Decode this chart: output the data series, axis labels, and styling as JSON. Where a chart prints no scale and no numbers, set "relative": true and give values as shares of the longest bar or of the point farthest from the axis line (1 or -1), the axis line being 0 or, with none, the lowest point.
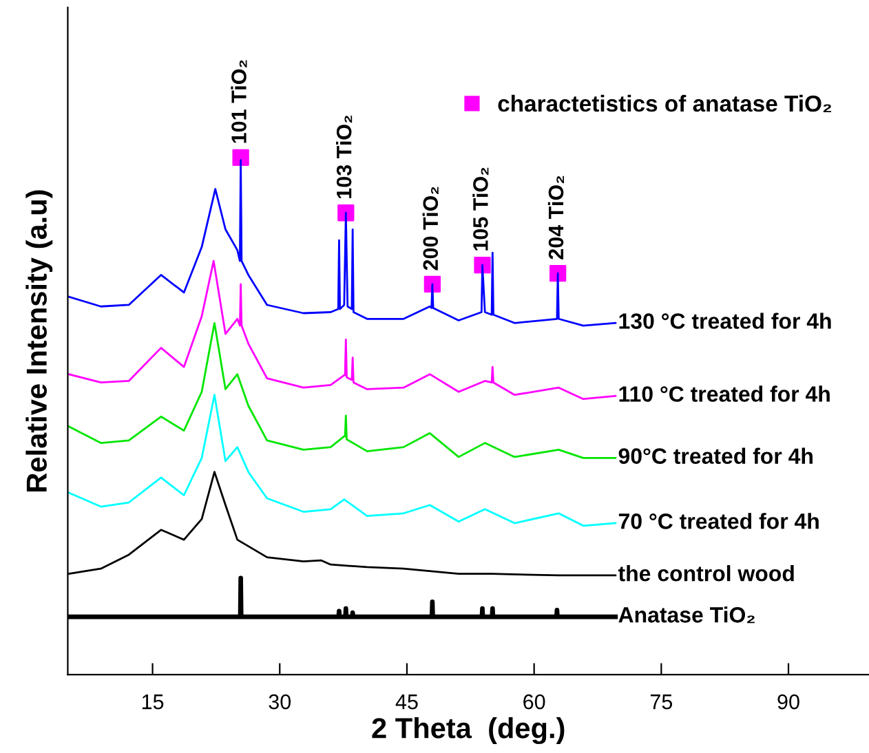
{
  "chart_data": {
    "type": "line",
    "relative": true,
    "xlabel": "2 Theta  (deg.)",
    "ylabel": "Relative Intensity (a.u)",
    "xlim": [
      5,
      99.5
    ],
    "xticks": [
      15,
      30,
      45,
      60,
      75,
      90
    ],
    "grid": false,
    "legend": "top right",
    "tick_labels": "x",
    "series": [
      {
        "name": "130 °C treated for 4h",
        "color": "#0000ff",
        "x": [
          5.1,
          8.9,
          12.2,
          16.0,
          18.7,
          20.8,
          22.4,
          23.6,
          25.0,
          25.3,
          25.4,
          25.5,
          26.3,
          28.5,
          32.8,
          36.0,
          36.9,
          37.0,
          37.1,
          37.6,
          37.8,
          38.0,
          38.5,
          38.6,
          38.7,
          40.3,
          44.6,
          47.7,
          47.9,
          48.0,
          48.1,
          51.1,
          53.8,
          53.9,
          54.2,
          55.0,
          55.1,
          55.2,
          57.7,
          62.7,
          62.8,
          62.9,
          65.8,
          69.6
        ],
        "values": [
          0.731,
          0.712,
          0.715,
          0.773,
          0.739,
          0.827,
          0.939,
          0.861,
          0.821,
          0.8,
          0.995,
          0.8,
          0.773,
          0.715,
          0.699,
          0.701,
          0.707,
          0.84,
          0.707,
          0.715,
          0.893,
          0.712,
          0.707,
          0.861,
          0.701,
          0.688,
          0.688,
          0.712,
          0.709,
          0.755,
          0.709,
          0.685,
          0.701,
          0.792,
          0.701,
          0.696,
          0.816,
          0.696,
          0.68,
          0.688,
          0.776,
          0.688,
          0.675,
          0.68
        ]
      },
      {
        "name": "110 °C treated for 4h",
        "color": "#ff00ff",
        "x": [
          5.1,
          8.9,
          12.2,
          16.0,
          18.7,
          20.8,
          22.2,
          23.6,
          25.0,
          25.3,
          25.4,
          25.5,
          26.3,
          28.5,
          32.8,
          36.0,
          37.6,
          37.7,
          37.8,
          37.9,
          38.5,
          38.6,
          38.7,
          40.3,
          44.6,
          47.7,
          51.1,
          54.2,
          55.0,
          55.1,
          55.2,
          57.7,
          62.9,
          65.8,
          69.6
        ],
        "values": [
          0.581,
          0.565,
          0.568,
          0.632,
          0.595,
          0.693,
          0.8,
          0.659,
          0.688,
          0.675,
          0.755,
          0.675,
          0.64,
          0.573,
          0.555,
          0.56,
          0.579,
          0.579,
          0.648,
          0.575,
          0.57,
          0.613,
          0.565,
          0.552,
          0.555,
          0.581,
          0.547,
          0.568,
          0.565,
          0.595,
          0.565,
          0.541,
          0.555,
          0.533,
          0.539
        ]
      },
      {
        "name": "90°C treated for 4h",
        "color": "#00e600",
        "x": [
          5.1,
          8.9,
          12.2,
          16.0,
          18.7,
          20.8,
          22.3,
          23.6,
          25.0,
          26.3,
          28.5,
          32.8,
          36.0,
          37.6,
          37.7,
          37.8,
          37.9,
          40.3,
          44.6,
          47.7,
          51.1,
          54.2,
          57.7,
          62.9,
          65.8,
          69.6
        ],
        "values": [
          0.48,
          0.448,
          0.453,
          0.499,
          0.472,
          0.547,
          0.68,
          0.552,
          0.581,
          0.52,
          0.453,
          0.435,
          0.44,
          0.461,
          0.461,
          0.501,
          0.455,
          0.432,
          0.44,
          0.467,
          0.421,
          0.448,
          0.421,
          0.435,
          0.419,
          0.419
        ]
      },
      {
        "name": "70 °C treated for 4h",
        "color": "#00ffff",
        "x": [
          5.1,
          8.9,
          12.2,
          16.0,
          18.7,
          20.8,
          22.3,
          23.6,
          25.0,
          26.3,
          28.5,
          32.8,
          36.0,
          37.6,
          40.3,
          44.6,
          47.7,
          51.1,
          54.2,
          57.7,
          62.9,
          65.8,
          69.6
        ],
        "values": [
          0.352,
          0.325,
          0.333,
          0.381,
          0.347,
          0.419,
          0.541,
          0.413,
          0.44,
          0.392,
          0.341,
          0.315,
          0.32,
          0.339,
          0.307,
          0.312,
          0.328,
          0.296,
          0.32,
          0.293,
          0.312,
          0.288,
          0.293
        ]
      },
      {
        "name": "the control wood",
        "color": "#000000",
        "x": [
          5.1,
          8.9,
          12.2,
          16.0,
          18.7,
          20.8,
          22.3,
          23.6,
          25.0,
          28.5,
          32.8,
          34.9,
          36.0,
          40.3,
          44.6,
          51.1,
          55.0,
          62.9,
          69.6
        ],
        "values": [
          0.195,
          0.205,
          0.232,
          0.28,
          0.261,
          0.301,
          0.392,
          0.328,
          0.261,
          0.227,
          0.219,
          0.221,
          0.213,
          0.208,
          0.205,
          0.195,
          0.195,
          0.192,
          0.192
        ]
      },
      {
        "name": "Anatase TiO₂",
        "color": "#000000",
        "x": [
          5,
          25.35,
          25.4,
          25.45,
          36.95,
          37.0,
          37.05,
          37.75,
          37.8,
          37.85,
          38.55,
          38.6,
          38.65,
          47.95,
          48.0,
          48.05,
          53.85,
          53.9,
          53.95,
          55.05,
          55.1,
          55.15,
          62.65,
          62.7,
          62.75,
          69.6
        ],
        "values": [
          0.112,
          0.112,
          0.187,
          0.112,
          0.112,
          0.123,
          0.112,
          0.112,
          0.128,
          0.112,
          0.112,
          0.12,
          0.112,
          0.112,
          0.141,
          0.112,
          0.112,
          0.128,
          0.112,
          0.112,
          0.128,
          0.112,
          0.112,
          0.125,
          0.112,
          0.112
        ]
      },
      {
        "name": "charactetistics of anatase TiO₂",
        "type": "scatter",
        "marker": "square",
        "color": "#ff00ff",
        "x": [
          25.4,
          37.8,
          48.0,
          53.9,
          62.8
        ],
        "values": [
          1.0,
          0.893,
          0.755,
          0.792,
          0.776
        ]
      }
    ],
    "annotations": [
      {
        "text": "101 TiO₂",
        "x": 25.4,
        "y": 1.0
      },
      {
        "text": "103 TiO₂",
        "x": 37.8,
        "y": 0.893
      },
      {
        "text": "200 TiO₂",
        "x": 48.0,
        "y": 0.755
      },
      {
        "text": "105 TiO₂",
        "x": 53.9,
        "y": 0.792
      },
      {
        "text": "204 TiO₂",
        "x": 62.8,
        "y": 0.776
      }
    ]
  }
}
